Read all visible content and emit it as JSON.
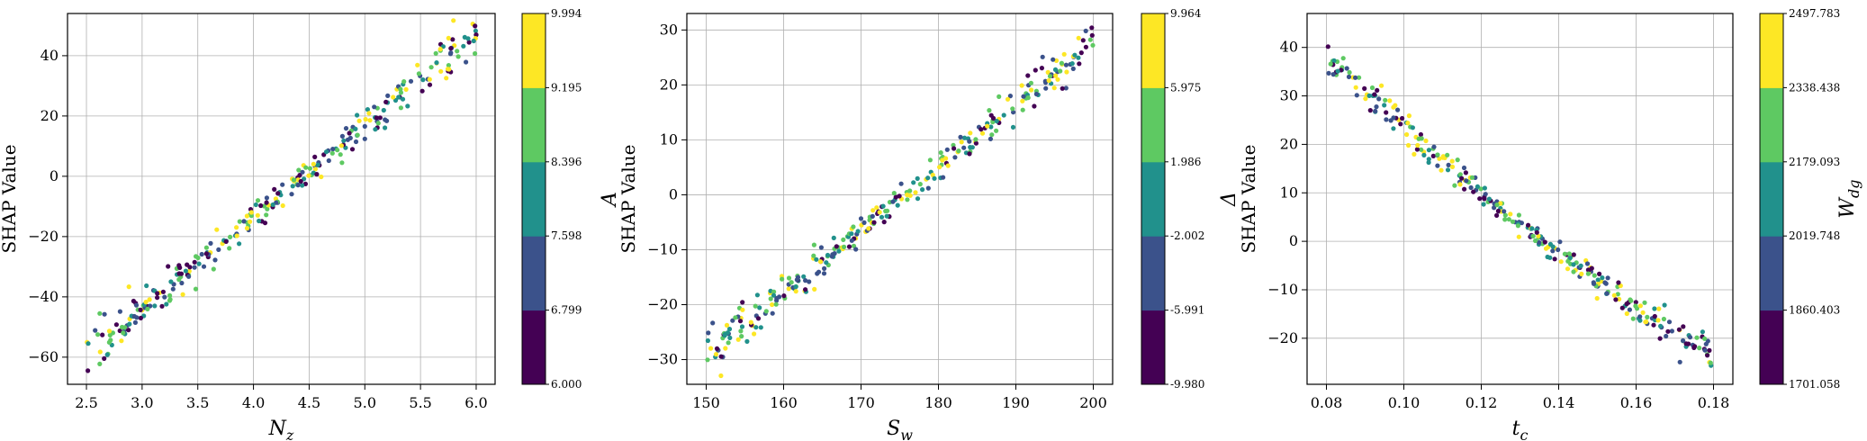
{
  "figure": {
    "palette": [
      "#440154",
      "#3b528b",
      "#21918c",
      "#5ec962",
      "#fde725"
    ],
    "grid_color": "#b0b0b0",
    "axis_color": "#000000"
  },
  "chart_data": [
    {
      "type": "scatter",
      "xlabel": "N",
      "xlabel_sub": "z",
      "ylabel": "SHAP Value",
      "xlim": [
        2.33,
        6.17
      ],
      "ylim": [
        -69,
        54
      ],
      "xticks": [
        2.5,
        3.0,
        3.5,
        4.0,
        4.5,
        5.0,
        5.5,
        6.0
      ],
      "xtick_labels": [
        "2.5",
        "3.0",
        "3.5",
        "4.0",
        "4.5",
        "5.0",
        "5.5",
        "6.0"
      ],
      "yticks": [
        -60,
        -40,
        -20,
        0,
        20,
        40
      ],
      "ytick_labels": [
        "−60",
        "−40",
        "−20",
        "0",
        "20",
        "40"
      ],
      "grid": true,
      "trend": {
        "x_start": 2.5,
        "y_start": -59.5,
        "x_end": 6.0,
        "y_end": 47,
        "noise": 3.5
      },
      "n_points": 300,
      "colorbar": {
        "label": "A",
        "label_sub": "",
        "range": [
          6.0,
          9.994
        ],
        "tick_labels": [
          "6.000",
          "6.799",
          "7.598",
          "8.396",
          "9.195",
          "9.994"
        ]
      }
    },
    {
      "type": "scatter",
      "xlabel": "S",
      "xlabel_sub": "w",
      "ylabel": "SHAP Value",
      "xlim": [
        147.5,
        202.5
      ],
      "ylim": [
        -34.5,
        33
      ],
      "xticks": [
        150,
        160,
        170,
        180,
        190,
        200
      ],
      "xtick_labels": [
        "150",
        "160",
        "170",
        "180",
        "190",
        "200"
      ],
      "yticks": [
        -30,
        -20,
        -10,
        0,
        10,
        20,
        30
      ],
      "ytick_labels": [
        "−30",
        "−20",
        "−10",
        "0",
        "10",
        "20",
        "30"
      ],
      "grid": true,
      "trend": {
        "x_start": 150,
        "y_start": -29,
        "x_end": 200,
        "y_end": 28,
        "noise": 2.0
      },
      "n_points": 300,
      "colorbar": {
        "label": "Δ",
        "label_sub": "",
        "range": [
          -9.98,
          9.964
        ],
        "tick_labels": [
          "-9.980",
          "-5.991",
          "-2.002",
          "1.986",
          "5.975",
          "9.964"
        ]
      }
    },
    {
      "type": "scatter",
      "xlabel": "t",
      "xlabel_sub": "c",
      "ylabel": "SHAP Value",
      "xlim": [
        0.075,
        0.185
      ],
      "ylim": [
        -29.5,
        47
      ],
      "xticks": [
        0.08,
        0.1,
        0.12,
        0.14,
        0.16,
        0.18
      ],
      "xtick_labels": [
        "0.08",
        "0.10",
        "0.12",
        "0.14",
        "0.16",
        "0.18"
      ],
      "yticks": [
        -20,
        -10,
        0,
        10,
        20,
        30,
        40
      ],
      "ytick_labels": [
        "−20",
        "−10",
        "0",
        "10",
        "20",
        "30",
        "40"
      ],
      "grid": true,
      "trend": {
        "x_start": 0.08,
        "y_start": 39,
        "x_end": 0.18,
        "y_end": -23.5,
        "curvature": 0.55,
        "noise": 1.8
      },
      "n_points": 300,
      "colorbar": {
        "label": "W",
        "label_sub": "dg",
        "range": [
          1701.058,
          2497.783
        ],
        "tick_labels": [
          "1701.058",
          "1860.403",
          "2019.748",
          "2179.093",
          "2338.438",
          "2497.783"
        ]
      }
    }
  ]
}
